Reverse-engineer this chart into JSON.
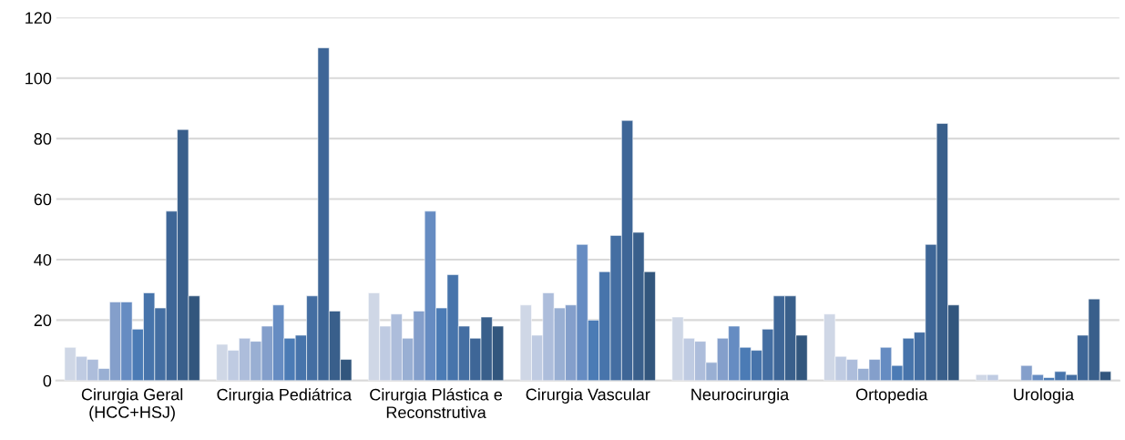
{
  "chart_data": {
    "type": "bar",
    "categories": [
      "Cirurgia Geral\n(HCC+HSJ)",
      "Cirurgia Pediátrica",
      "Cirurgia Plástica e\nReconstrutiva",
      "Cirurgia Vascular",
      "Neurocirurgia",
      "Ortopedia",
      "Urologia"
    ],
    "series": [
      {
        "color": "#cfd7e6",
        "values": [
          11,
          12,
          29,
          25,
          21,
          22,
          2
        ]
      },
      {
        "color": "#bfcbe2",
        "values": [
          8,
          10,
          18,
          15,
          14,
          8,
          2
        ]
      },
      {
        "color": "#adbddb",
        "values": [
          7,
          14,
          22,
          29,
          13,
          7,
          null
        ]
      },
      {
        "color": "#99afd3",
        "values": [
          4,
          13,
          14,
          24,
          6,
          4,
          null
        ]
      },
      {
        "color": "#849fcb",
        "values": [
          26,
          18,
          23,
          25,
          14,
          7,
          5
        ]
      },
      {
        "color": "#668cc2",
        "values": [
          26,
          25,
          56,
          45,
          18,
          11,
          2
        ]
      },
      {
        "color": "#4b7bb5",
        "values": [
          17,
          14,
          24,
          20,
          11,
          5,
          1
        ]
      },
      {
        "color": "#4774ab",
        "values": [
          29,
          15,
          35,
          36,
          10,
          14,
          3
        ]
      },
      {
        "color": "#446ea2",
        "values": [
          24,
          28,
          18,
          48,
          17,
          16,
          2
        ]
      },
      {
        "color": "#3e6697",
        "values": [
          56,
          110,
          14,
          86,
          28,
          45,
          15
        ]
      },
      {
        "color": "#395f8b",
        "values": [
          83,
          23,
          21,
          49,
          28,
          85,
          27
        ]
      },
      {
        "color": "#32567d",
        "values": [
          28,
          7,
          18,
          36,
          15,
          25,
          3
        ]
      }
    ],
    "ylim": [
      0,
      120
    ],
    "yticks": [
      0,
      20,
      40,
      60,
      80,
      100,
      120
    ],
    "grid": "y",
    "legend": false
  }
}
